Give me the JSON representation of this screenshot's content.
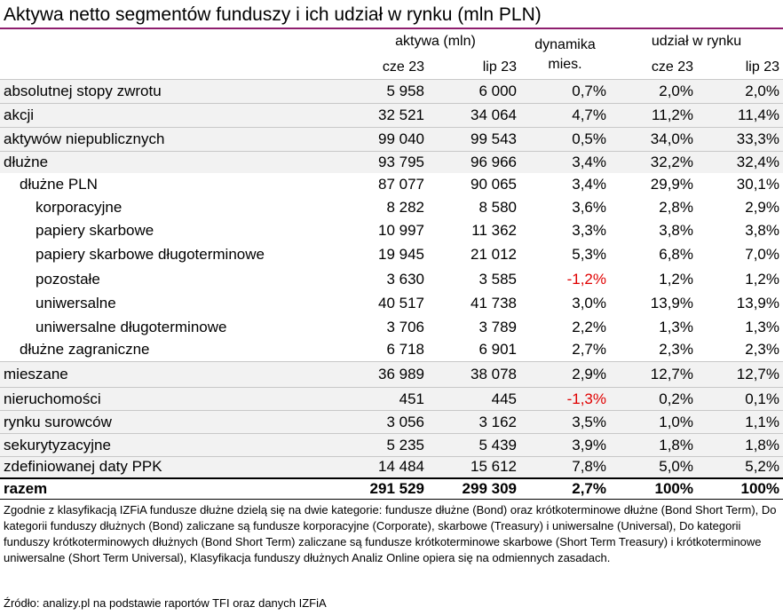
{
  "title": "Aktywa netto segmentów funduszy i ich udział w rynku (mln PLN)",
  "header": {
    "group_assets": "aktywa (mln)",
    "dynamics_line1": "dynamika",
    "dynamics_line2": "mies.",
    "group_share": "udział w rynku",
    "cze": "cze 23",
    "lip": "lip 23"
  },
  "rows": [
    {
      "label": "absolutnej stopy zwrotu",
      "cze": "5 958",
      "lip": "6 000",
      "dyn": "0,7%",
      "share_cze": "2,0%",
      "share_lip": "2,0%"
    },
    {
      "label": "akcji",
      "cze": "32 521",
      "lip": "34 064",
      "dyn": "4,7%",
      "share_cze": "11,2%",
      "share_lip": "11,4%"
    },
    {
      "label": "aktywów niepublicznych",
      "cze": "99 040",
      "lip": "99 543",
      "dyn": "0,5%",
      "share_cze": "34,0%",
      "share_lip": "33,3%"
    },
    {
      "label": "dłużne",
      "cze": "93 795",
      "lip": "96 966",
      "dyn": "3,4%",
      "share_cze": "32,2%",
      "share_lip": "32,4%"
    },
    {
      "label": "dłużne PLN",
      "cze": "87 077",
      "lip": "90 065",
      "dyn": "3,4%",
      "share_cze": "29,9%",
      "share_lip": "30,1%"
    },
    {
      "label": "korporacyjne",
      "cze": "8 282",
      "lip": "8 580",
      "dyn": "3,6%",
      "share_cze": "2,8%",
      "share_lip": "2,9%"
    },
    {
      "label": "papiery skarbowe",
      "cze": "10 997",
      "lip": "11 362",
      "dyn": "3,3%",
      "share_cze": "3,8%",
      "share_lip": "3,8%"
    },
    {
      "label": "papiery skarbowe długoterminowe",
      "cze": "19 945",
      "lip": "21 012",
      "dyn": "5,3%",
      "share_cze": "6,8%",
      "share_lip": "7,0%"
    },
    {
      "label": "pozostałe",
      "cze": "3 630",
      "lip": "3 585",
      "dyn": "-1,2%",
      "share_cze": "1,2%",
      "share_lip": "1,2%"
    },
    {
      "label": "uniwersalne",
      "cze": "40 517",
      "lip": "41 738",
      "dyn": "3,0%",
      "share_cze": "13,9%",
      "share_lip": "13,9%"
    },
    {
      "label": "uniwersalne długoterminowe",
      "cze": "3 706",
      "lip": "3 789",
      "dyn": "2,2%",
      "share_cze": "1,3%",
      "share_lip": "1,3%"
    },
    {
      "label": "dłużne zagraniczne",
      "cze": "6 718",
      "lip": "6 901",
      "dyn": "2,7%",
      "share_cze": "2,3%",
      "share_lip": "2,3%"
    },
    {
      "label": "mieszane",
      "cze": "36 989",
      "lip": "38 078",
      "dyn": "2,9%",
      "share_cze": "12,7%",
      "share_lip": "12,7%"
    },
    {
      "label": "nieruchomości",
      "cze": "451",
      "lip": "445",
      "dyn": "-1,3%",
      "share_cze": "0,2%",
      "share_lip": "0,1%"
    },
    {
      "label": "rynku surowców",
      "cze": "3 056",
      "lip": "3 162",
      "dyn": "3,5%",
      "share_cze": "1,0%",
      "share_lip": "1,1%"
    },
    {
      "label": "sekurytyzacyjne",
      "cze": "5 235",
      "lip": "5 439",
      "dyn": "3,9%",
      "share_cze": "1,8%",
      "share_lip": "1,8%"
    },
    {
      "label": "zdefiniowanej daty PPK",
      "cze": "14 484",
      "lip": "15 612",
      "dyn": "7,8%",
      "share_cze": "5,0%",
      "share_lip": "5,2%"
    }
  ],
  "total": {
    "label": "razem",
    "cze": "291 529",
    "lip": "299 309",
    "dyn": "2,7%",
    "share_cze": "100%",
    "share_lip": "100%"
  },
  "note": "Zgodnie z klasyfikacją IZFiA fundusze dłużne dzielą się na dwie kategorie: fundusze dłużne (Bond) oraz krótkoterminowe dłużne (Bond Short Term), Do kategorii funduszy dłużnych (Bond) zaliczane są fundusze korporacyjne (Corporate), skarbowe (Treasury) i uniwersalne (Universal), Do kategorii funduszy krótkoterminowych dłużnych (Bond Short Term) zaliczane są fundusze krótkoterminowe skarbowe (Short Term Treasury) i krótkoterminowe uniwersalne (Short Term Universal), Klasyfikacja funduszy dłużnych Analiz Online opiera się na odmiennych zasadach.",
  "source": "Źródło: analizy.pl na podstawie raportów TFI oraz danych IZFiA",
  "colors": {
    "title_rule": "#8e1e6e",
    "negative": "#e00000",
    "row_shade": "#f2f2f2"
  }
}
